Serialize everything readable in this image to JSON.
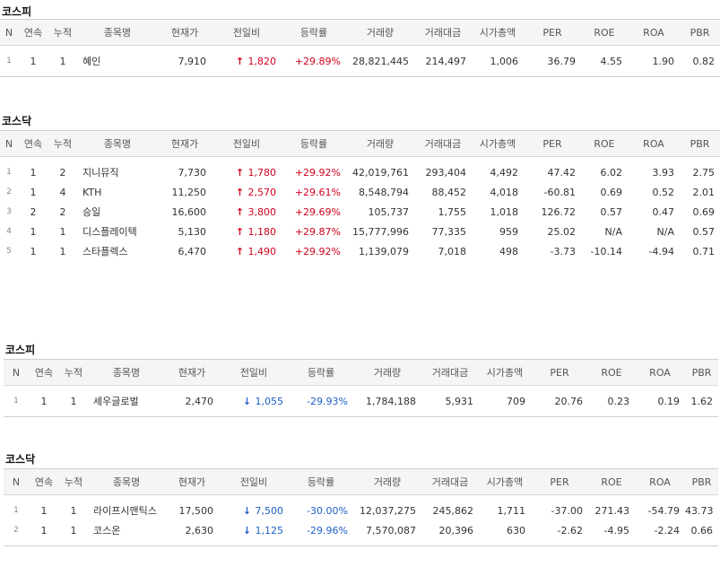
{
  "headers": [
    "N",
    "연속",
    "누적",
    "종목명",
    "현재가",
    "전일비",
    "등락률",
    "거래량",
    "거래대금",
    "시가총액",
    "PER",
    "ROE",
    "ROA",
    "PBR"
  ],
  "tables": [
    {
      "title": "코스피",
      "rows": [
        {
          "n": "1",
          "c1": "1",
          "c2": "1",
          "name": "혜인",
          "price": "7,910",
          "dir": "up",
          "arrow": "↑",
          "diff": "1,820",
          "rate": "+29.89%",
          "vol": "28,821,445",
          "amount": "214,497",
          "cap": "1,006",
          "per": "36.79",
          "roe": "4.55",
          "roa": "1.90",
          "pbr": "0.82"
        }
      ]
    },
    {
      "title": "코스닥",
      "rows": [
        {
          "n": "1",
          "c1": "1",
          "c2": "2",
          "name": "지니뮤직",
          "price": "7,730",
          "dir": "up",
          "arrow": "↑",
          "diff": "1,780",
          "rate": "+29.92%",
          "vol": "42,019,761",
          "amount": "293,404",
          "cap": "4,492",
          "per": "47.42",
          "roe": "6.02",
          "roa": "3.93",
          "pbr": "2.75"
        },
        {
          "n": "2",
          "c1": "1",
          "c2": "4",
          "name": "KTH",
          "price": "11,250",
          "dir": "up",
          "arrow": "↑",
          "diff": "2,570",
          "rate": "+29.61%",
          "vol": "8,548,794",
          "amount": "88,452",
          "cap": "4,018",
          "per": "-60.81",
          "roe": "0.69",
          "roa": "0.52",
          "pbr": "2.01"
        },
        {
          "n": "3",
          "c1": "2",
          "c2": "2",
          "name": "승일",
          "price": "16,600",
          "dir": "up",
          "arrow": "↑",
          "diff": "3,800",
          "rate": "+29.69%",
          "vol": "105,737",
          "amount": "1,755",
          "cap": "1,018",
          "per": "126.72",
          "roe": "0.57",
          "roa": "0.47",
          "pbr": "0.69"
        },
        {
          "n": "4",
          "c1": "1",
          "c2": "1",
          "name": "디스플레이텍",
          "price": "5,130",
          "dir": "up",
          "arrow": "↑",
          "diff": "1,180",
          "rate": "+29.87%",
          "vol": "15,777,996",
          "amount": "77,335",
          "cap": "959",
          "per": "25.02",
          "roe": "N/A",
          "roa": "N/A",
          "pbr": "0.57"
        },
        {
          "n": "5",
          "c1": "1",
          "c2": "1",
          "name": "스타플렉스",
          "price": "6,470",
          "dir": "up",
          "arrow": "↑",
          "diff": "1,490",
          "rate": "+29.92%",
          "vol": "1,139,079",
          "amount": "7,018",
          "cap": "498",
          "per": "-3.73",
          "roe": "-10.14",
          "roa": "-4.94",
          "pbr": "0.71"
        }
      ]
    },
    {
      "title": "코스피",
      "rows": [
        {
          "n": "1",
          "c1": "1",
          "c2": "1",
          "name": "세우글로벌",
          "price": "2,470",
          "dir": "down",
          "arrow": "↓",
          "diff": "1,055",
          "rate": "-29.93%",
          "vol": "1,784,188",
          "amount": "5,931",
          "cap": "709",
          "per": "20.76",
          "roe": "0.23",
          "roa": "0.19",
          "pbr": "1.62"
        }
      ]
    },
    {
      "title": "코스닥",
      "rows": [
        {
          "n": "1",
          "c1": "1",
          "c2": "1",
          "name": "라이프시맨틱스",
          "price": "17,500",
          "dir": "down",
          "arrow": "↓",
          "diff": "7,500",
          "rate": "-30.00%",
          "vol": "12,037,275",
          "amount": "245,862",
          "cap": "1,711",
          "per": "-37.00",
          "roe": "271.43",
          "roa": "-54.79",
          "pbr": "43.73"
        },
        {
          "n": "2",
          "c1": "1",
          "c2": "1",
          "name": "코스온",
          "price": "2,630",
          "dir": "down",
          "arrow": "↓",
          "diff": "1,125",
          "rate": "-29.96%",
          "vol": "7,570,087",
          "amount": "20,396",
          "cap": "630",
          "per": "-2.62",
          "roe": "-4.95",
          "roa": "-2.24",
          "pbr": "0.66"
        }
      ]
    }
  ]
}
